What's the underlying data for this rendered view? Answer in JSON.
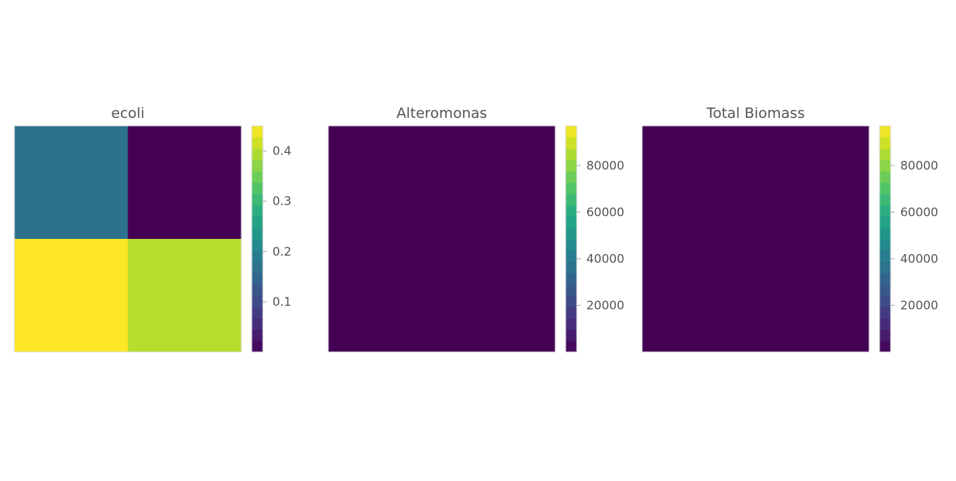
{
  "chart_data": [
    {
      "type": "heatmap",
      "title": "ecoli",
      "colormap": "viridis",
      "grid": false,
      "rows": 2,
      "cols": 2,
      "values": [
        [
          0.17,
          0.0
        ],
        [
          0.45,
          0.4
        ]
      ],
      "clim": [
        0.0,
        0.45
      ],
      "colorbar_ticks": [
        0.1,
        0.2,
        0.3,
        0.4
      ],
      "colorbar_tick_labels": [
        "0.1",
        "0.2",
        "0.3",
        "0.4"
      ]
    },
    {
      "type": "heatmap",
      "title": "Alteromonas",
      "colormap": "viridis",
      "grid": false,
      "rows": 1,
      "cols": 1,
      "values": [
        [
          0
        ]
      ],
      "clim": [
        0,
        97000
      ],
      "colorbar_ticks": [
        20000,
        40000,
        60000,
        80000
      ],
      "colorbar_tick_labels": [
        "20000",
        "40000",
        "60000",
        "80000"
      ]
    },
    {
      "type": "heatmap",
      "title": "Total Biomass",
      "colormap": "viridis",
      "grid": false,
      "rows": 1,
      "cols": 1,
      "values": [
        [
          0
        ]
      ],
      "clim": [
        0,
        97000
      ],
      "colorbar_ticks": [
        20000,
        40000,
        60000,
        80000
      ],
      "colorbar_tick_labels": [
        "20000",
        "40000",
        "60000",
        "80000"
      ]
    }
  ]
}
